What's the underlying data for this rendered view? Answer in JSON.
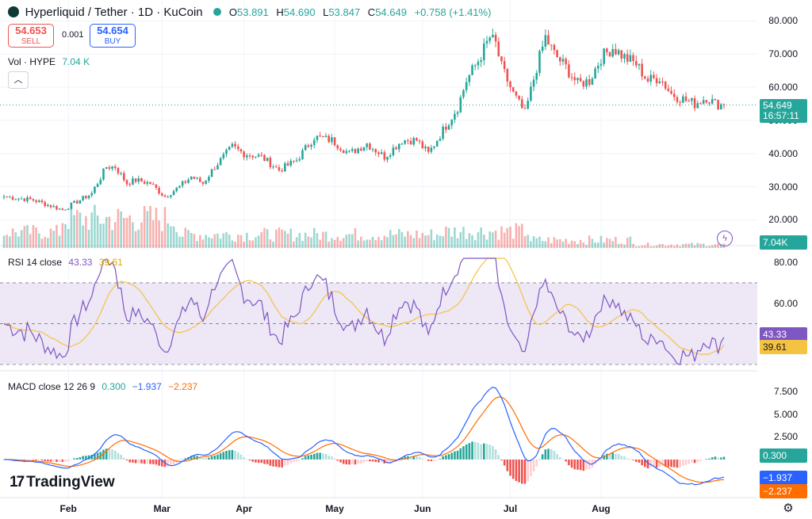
{
  "header": {
    "pair": "Hyperliquid / Tether · 1D · KuCoin",
    "open_label": "O",
    "open": "53.891",
    "high_label": "H",
    "high": "54.690",
    "low_label": "L",
    "low": "53.847",
    "close_label": "C",
    "close": "54.649",
    "change": "+0.758 (+1.41%)"
  },
  "trade": {
    "sell_price": "54.653",
    "sell_label": "SELL",
    "spread": "0.001",
    "buy_price": "54.654",
    "buy_label": "BUY"
  },
  "volume_legend": {
    "label": "Vol · HYPE",
    "value": "7.04 K"
  },
  "rsi_legend": {
    "label": "RSI 14 close",
    "rsi": "43.33",
    "ma": "39.61"
  },
  "macd_legend": {
    "label": "MACD close 12 26 9",
    "hist": "0.300",
    "macd": "−1.937",
    "signal": "−2.237"
  },
  "tags": {
    "price": "54.649",
    "countdown": "16:57:11",
    "volume": "7.04K",
    "rsi": "43.33",
    "rsi_ma": "39.61",
    "macd_hist": "0.300",
    "macd": "−1.937",
    "signal": "−2.237"
  },
  "branding": "TradingView",
  "icons": [
    "tradingview-logo-icon",
    "chevron-up-icon",
    "lightning-icon",
    "gear-icon"
  ],
  "colors": {
    "up": "#26a69a",
    "down": "#ef5350",
    "rsi_line": "#7e57c2",
    "rsi_ma": "#f5c342",
    "macd_line": "#2962ff",
    "signal_line": "#ff6d00",
    "rsi_band": "#ede7f6"
  },
  "chart_data": [
    {
      "type": "candlestick",
      "title": "Hyperliquid / Tether · 1D · KuCoin",
      "x_ticks": [
        "Feb",
        "Mar",
        "Apr",
        "May",
        "Jun",
        "Jul",
        "Aug"
      ],
      "y_ticks": [
        "80.000",
        "70.000",
        "60.000",
        "50.000",
        "40.000",
        "30.000",
        "20.000"
      ],
      "ylim": [
        17,
        82
      ],
      "series": [
        {
          "name": "close",
          "anchors": [
            [
              0,
              27
            ],
            [
              10,
              26
            ],
            [
              20,
              23
            ],
            [
              30,
              28
            ],
            [
              35,
              36
            ],
            [
              38,
              36
            ],
            [
              42,
              31
            ],
            [
              45,
              32
            ],
            [
              50,
              31
            ],
            [
              55,
              27
            ],
            [
              60,
              30
            ],
            [
              64,
              33
            ],
            [
              68,
              31
            ],
            [
              72,
              36
            ],
            [
              78,
              42
            ],
            [
              82,
              40
            ],
            [
              88,
              39
            ],
            [
              94,
              35
            ],
            [
              100,
              38
            ],
            [
              106,
              45
            ],
            [
              112,
              44
            ],
            [
              118,
              40
            ],
            [
              124,
              43
            ],
            [
              130,
              39
            ],
            [
              136,
              44
            ],
            [
              141,
              44
            ],
            [
              145,
              40
            ],
            [
              150,
              47
            ],
            [
              155,
              54
            ],
            [
              158,
              62
            ],
            [
              162,
              68
            ],
            [
              166,
              75
            ],
            [
              168,
              73
            ],
            [
              170,
              66
            ],
            [
              174,
              58
            ],
            [
              178,
              52
            ],
            [
              182,
              66
            ],
            [
              185,
              75
            ],
            [
              188,
              70
            ],
            [
              192,
              66
            ],
            [
              196,
              61
            ],
            [
              200,
              62
            ],
            [
              204,
              69
            ],
            [
              208,
              72
            ],
            [
              212,
              69
            ],
            [
              216,
              67
            ],
            [
              220,
              62
            ],
            [
              224,
              63
            ],
            [
              228,
              58
            ],
            [
              233,
              56
            ],
            [
              236,
              55
            ],
            [
              240,
              57
            ],
            [
              243,
              55
            ],
            [
              246,
              54.6
            ]
          ]
        }
      ]
    },
    {
      "type": "bar",
      "title": "Vol · HYPE",
      "last_value": "7.04K"
    },
    {
      "type": "line",
      "title": "RSI 14 close",
      "y_ticks": [
        "80.00",
        "60.00"
      ],
      "ylim": [
        30,
        82
      ],
      "bands": [
        70,
        50,
        30
      ],
      "series": [
        {
          "name": "RSI",
          "last": 43.33
        },
        {
          "name": "MA",
          "last": 39.61
        }
      ]
    },
    {
      "type": "line",
      "title": "MACD close 12 26 9",
      "y_ticks": [
        "7.500",
        "5.000",
        "2.500"
      ],
      "ylim": [
        -3.5,
        8.2
      ],
      "series": [
        {
          "name": "histogram",
          "last": 0.3
        },
        {
          "name": "MACD",
          "last": -1.937
        },
        {
          "name": "signal",
          "last": -2.237
        }
      ]
    }
  ]
}
